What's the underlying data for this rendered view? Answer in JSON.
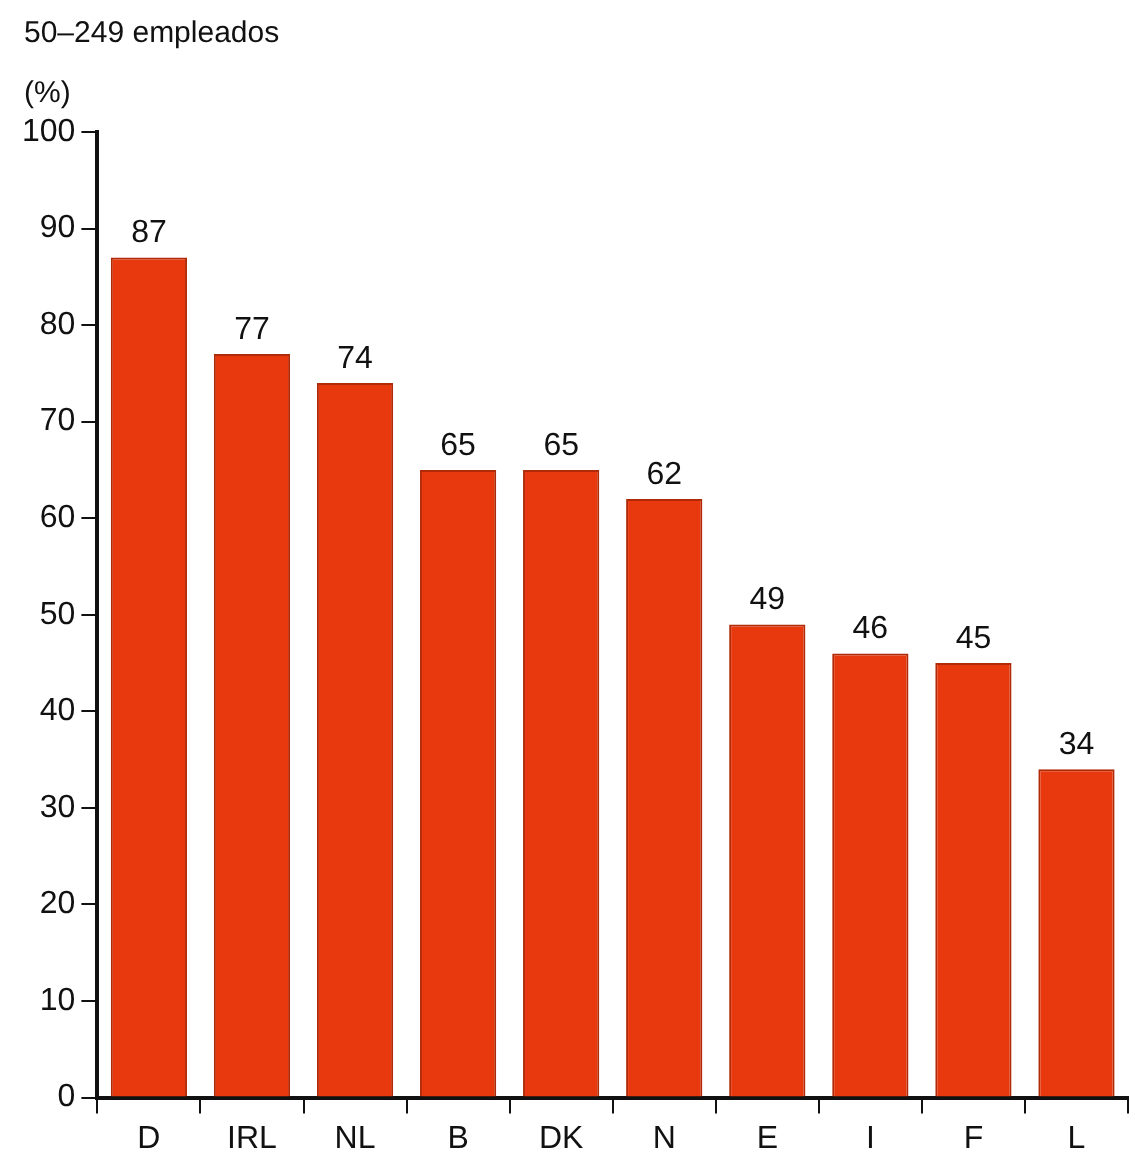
{
  "chart_data": {
    "type": "bar",
    "title": "50–249 empleados",
    "ylabel": "(%)",
    "categories": [
      "D",
      "IRL",
      "NL",
      "B",
      "DK",
      "N",
      "E",
      "I",
      "F",
      "L"
    ],
    "values": [
      87,
      77,
      74,
      65,
      65,
      62,
      49,
      46,
      45,
      34
    ],
    "color": "#e8380e",
    "ylim": [
      0,
      100
    ],
    "yticks": [
      0,
      10,
      20,
      30,
      40,
      50,
      60,
      70,
      80,
      90,
      100
    ],
    "data_labels": true,
    "grid": false,
    "legend": false
  }
}
